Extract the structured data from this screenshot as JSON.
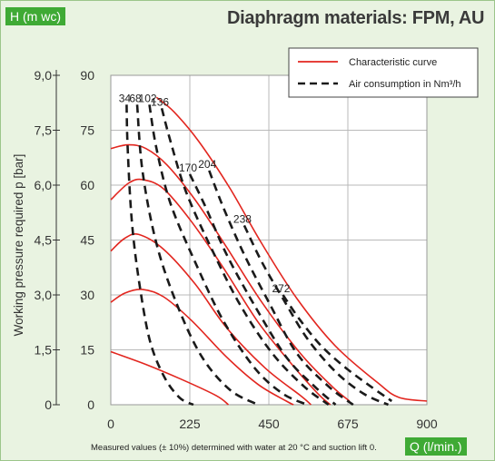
{
  "chart_data": {
    "type": "line",
    "title": "Diaphragm materials: FPM, AU",
    "y_axis_title": "H (m wc)",
    "x_axis_title": "Q (l/min.)",
    "secondary_y_title": "Working pressure required p [bar]",
    "footnote": "Measured values (± 10%) determined with water at 20 °C and suction lift 0.",
    "xlim": [
      0,
      900
    ],
    "ylim": [
      0,
      90
    ],
    "x_ticks": [
      "0",
      "225",
      "450",
      "675",
      "900"
    ],
    "y_ticks": [
      "0",
      "15",
      "30",
      "45",
      "60",
      "75",
      "90"
    ],
    "pressure_ticks": [
      "0",
      "1,5",
      "3,0",
      "4,5",
      "6,0",
      "7,5",
      "9,0"
    ],
    "grid": true,
    "legend": {
      "placement": "top-right",
      "characteristic_label": "Characteristic curve",
      "air_label": "Air consumption in Nm³/h"
    },
    "colors": {
      "characteristic": "#e2261f",
      "air": "#1a1a1a",
      "accent_green": "#3faa35",
      "background": "#e9f3e1"
    },
    "characteristic_curves": [
      {
        "points": [
          [
            0,
            14.5
          ],
          [
            100,
            11
          ],
          [
            200,
            7
          ],
          [
            300,
            2.5
          ],
          [
            335,
            0
          ]
        ]
      },
      {
        "points": [
          [
            0,
            28
          ],
          [
            40,
            30.5
          ],
          [
            90,
            31.5
          ],
          [
            150,
            29.5
          ],
          [
            230,
            23
          ],
          [
            330,
            13
          ],
          [
            420,
            5.5
          ],
          [
            500,
            1
          ],
          [
            520,
            0
          ]
        ]
      },
      {
        "points": [
          [
            0,
            42
          ],
          [
            40,
            45.5
          ],
          [
            80,
            46.5
          ],
          [
            150,
            42.5
          ],
          [
            240,
            33
          ],
          [
            330,
            21
          ],
          [
            440,
            10
          ],
          [
            540,
            2.5
          ],
          [
            570,
            0
          ]
        ]
      },
      {
        "points": [
          [
            0,
            56
          ],
          [
            50,
            60.5
          ],
          [
            90,
            61.5
          ],
          [
            150,
            59
          ],
          [
            230,
            50
          ],
          [
            320,
            37.5
          ],
          [
            420,
            22.5
          ],
          [
            520,
            10.5
          ],
          [
            590,
            3
          ],
          [
            625,
            0
          ]
        ]
      },
      {
        "points": [
          [
            0,
            70
          ],
          [
            50,
            71
          ],
          [
            100,
            70
          ],
          [
            160,
            65.5
          ],
          [
            240,
            56
          ],
          [
            330,
            43
          ],
          [
            430,
            28
          ],
          [
            540,
            14
          ],
          [
            630,
            5
          ],
          [
            680,
            1
          ]
        ]
      },
      {
        "points": [
          [
            130,
            84
          ],
          [
            180,
            80
          ],
          [
            250,
            72
          ],
          [
            340,
            59
          ],
          [
            430,
            44
          ],
          [
            530,
            29
          ],
          [
            640,
            16
          ],
          [
            760,
            6
          ],
          [
            820,
            2
          ],
          [
            900,
            1
          ]
        ]
      }
    ],
    "air_consumption_curves": [
      {
        "label": "34",
        "points": [
          [
            45,
            82
          ],
          [
            48,
            70
          ],
          [
            60,
            50
          ],
          [
            80,
            34
          ],
          [
            110,
            18
          ],
          [
            150,
            8
          ],
          [
            195,
            2
          ],
          [
            235,
            0
          ]
        ]
      },
      {
        "label": "68",
        "points": [
          [
            75,
            82
          ],
          [
            90,
            64
          ],
          [
            130,
            44
          ],
          [
            190,
            27
          ],
          [
            260,
            13
          ],
          [
            340,
            4
          ],
          [
            420,
            0
          ]
        ]
      },
      {
        "label": "102",
        "points": [
          [
            110,
            82
          ],
          [
            130,
            70
          ],
          [
            170,
            55
          ],
          [
            240,
            39
          ],
          [
            320,
            23
          ],
          [
            410,
            10
          ],
          [
            490,
            3
          ],
          [
            560,
            0
          ]
        ]
      },
      {
        "label": "136",
        "points": [
          [
            145,
            81
          ],
          [
            170,
            72
          ],
          [
            215,
            58
          ],
          [
            290,
            42
          ],
          [
            370,
            27
          ],
          [
            460,
            14
          ],
          [
            550,
            5
          ],
          [
            620,
            0
          ]
        ]
      },
      {
        "label": "170",
        "points": [
          [
            225,
            63
          ],
          [
            270,
            54
          ],
          [
            330,
            41
          ],
          [
            410,
            27
          ],
          [
            500,
            13
          ],
          [
            580,
            5
          ],
          [
            640,
            0
          ]
        ]
      },
      {
        "label": "204",
        "points": [
          [
            280,
            64
          ],
          [
            320,
            54
          ],
          [
            380,
            41
          ],
          [
            450,
            28
          ],
          [
            530,
            14
          ],
          [
            620,
            5
          ],
          [
            690,
            0
          ]
        ]
      },
      {
        "label": "238",
        "points": [
          [
            380,
            49
          ],
          [
            430,
            39
          ],
          [
            490,
            29
          ],
          [
            560,
            18
          ],
          [
            640,
            9
          ],
          [
            720,
            3
          ],
          [
            790,
            0
          ]
        ]
      },
      {
        "label": "272",
        "points": [
          [
            490,
            30
          ],
          [
            540,
            23
          ],
          [
            600,
            16
          ],
          [
            670,
            10
          ],
          [
            740,
            5
          ],
          [
            800,
            1
          ]
        ]
      }
    ]
  }
}
